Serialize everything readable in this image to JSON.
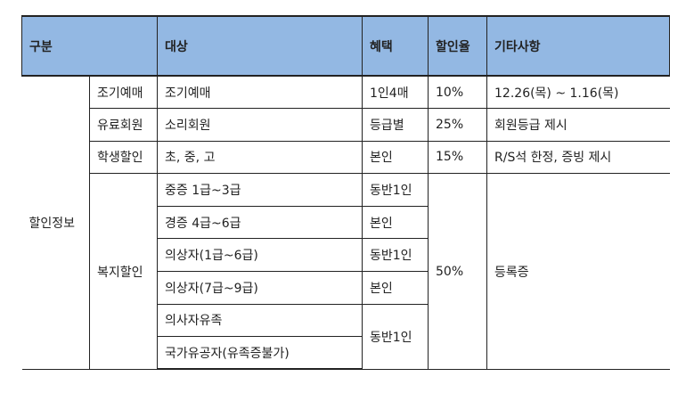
{
  "header": {
    "category": "구분",
    "target": "대상",
    "benefit": "혜택",
    "rate": "할인율",
    "notes": "기타사항"
  },
  "group_label": "할인정보",
  "rows": [
    {
      "type": "조기예매",
      "target": "조기예매",
      "benefit": "1인4매",
      "rate": "10%",
      "notes": "12.26(목) ~ 1.16(목)"
    },
    {
      "type": "유료회원",
      "target": "소리회원",
      "benefit": "등급별",
      "rate": "25%",
      "notes": "회원등급 제시"
    },
    {
      "type": "학생할인",
      "target": "초, 중, 고",
      "benefit": "본인",
      "rate": "15%",
      "notes": "R/S석 한정, 증빙 제시"
    }
  ],
  "welfare": {
    "type": "복지할인",
    "rate": "50%",
    "notes": "등록증",
    "targets": [
      "중증 1급~3급",
      "경증 4급~6급",
      "의상자(1급~6급)",
      "의상자(7급~9급)",
      "의사자유족",
      "국가유공자(유족증불가)"
    ],
    "benefits": [
      "동반1인",
      "본인",
      "동반1인",
      "본인",
      "동반1인"
    ]
  }
}
